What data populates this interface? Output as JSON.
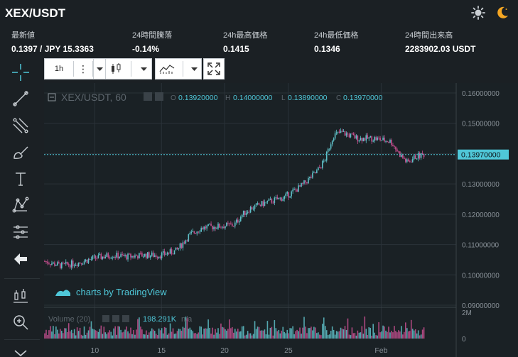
{
  "pair": {
    "title": "XEX/USDT"
  },
  "theme": {
    "light_icon": "sun-icon",
    "dark_icon": "moon-icon",
    "accent": "#f5a623"
  },
  "stats": [
    {
      "label": "最新値",
      "value": "0.1397 / JPY 15.3363"
    },
    {
      "label": "24時間騰落",
      "value": "-0.14%"
    },
    {
      "label": "24h最高価格",
      "value": "0.1415"
    },
    {
      "label": "24h最低価格",
      "value": "0.1346"
    },
    {
      "label": "24時間出来高",
      "value": "2283902.03 USDT"
    }
  ],
  "left_tools": [
    "crosshair-icon",
    "trend-line-icon",
    "fib-icon",
    "brush-icon",
    "text-icon",
    "pattern-icon",
    "measure-icon",
    "back-arrow-icon",
    "indicator-icon",
    "zoom-icon",
    "chevron-down-icon"
  ],
  "toolbar": {
    "interval": "1h"
  },
  "chart": {
    "symbol": "XEX/USDT, 60",
    "ohlc": {
      "o_label": "O",
      "o": "0.13920000",
      "h_label": "H",
      "h": "0.14000000",
      "l_label": "L",
      "l": "0.13890000",
      "c_label": "C",
      "c": "0.13970000"
    },
    "current_price": "0.13970000",
    "watermark": "charts by TradingView",
    "volume_label": "Volume (20)",
    "volume_value": "198.291K",
    "volume_na": "n/a",
    "volume_axis": [
      "2M",
      "0"
    ],
    "colors": {
      "up": "#5fc0c8",
      "down": "#c84f90",
      "accent": "#4fc7d8",
      "grid": "#2a3238"
    }
  },
  "chart_data": {
    "type": "candlestick",
    "y_ticks": [
      "0.16000000",
      "0.15000000",
      "0.14000000",
      "0.13000000",
      "0.12000000",
      "0.11000000",
      "0.10000000",
      "0.09000000"
    ],
    "ylim": [
      0.09,
      0.16
    ],
    "x_ticks": [
      "10",
      "15",
      "20",
      "25",
      "Feb"
    ],
    "price_path": [
      [
        0,
        0.1045
      ],
      [
        0.04,
        0.103
      ],
      [
        0.08,
        0.104
      ],
      [
        0.12,
        0.1055
      ],
      [
        0.16,
        0.1065
      ],
      [
        0.2,
        0.106
      ],
      [
        0.24,
        0.1065
      ],
      [
        0.28,
        0.1065
      ],
      [
        0.32,
        0.108
      ],
      [
        0.35,
        0.113
      ],
      [
        0.38,
        0.1155
      ],
      [
        0.42,
        0.116
      ],
      [
        0.46,
        0.1165
      ],
      [
        0.48,
        0.12
      ],
      [
        0.5,
        0.122
      ],
      [
        0.54,
        0.124
      ],
      [
        0.58,
        0.1255
      ],
      [
        0.62,
        0.129
      ],
      [
        0.66,
        0.134
      ],
      [
        0.68,
        0.138
      ],
      [
        0.7,
        0.146
      ],
      [
        0.72,
        0.147
      ],
      [
        0.76,
        0.145
      ],
      [
        0.8,
        0.145
      ],
      [
        0.84,
        0.144
      ],
      [
        0.86,
        0.14
      ],
      [
        0.88,
        0.137
      ],
      [
        0.9,
        0.139
      ],
      [
        0.92,
        0.1397
      ]
    ]
  }
}
